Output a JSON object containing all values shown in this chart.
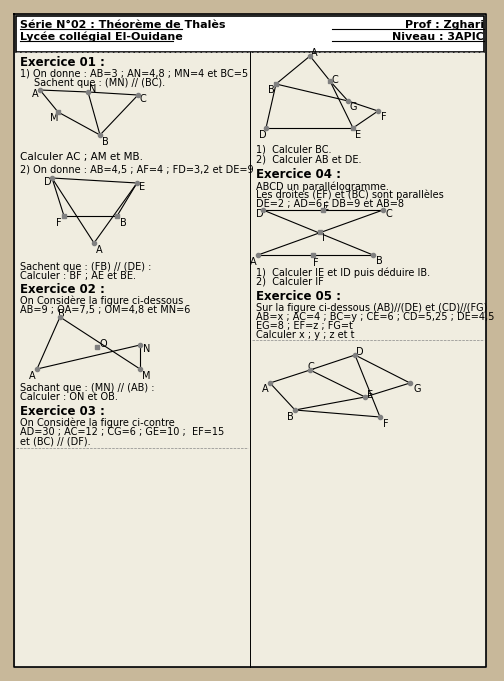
{
  "bg_color": "#c8b89a",
  "paper_color": "#f0ede0",
  "title_left1": "Série N°02 : Théorème de Thalès",
  "title_left2": "Lycée collégial El-Ouidane",
  "title_right1": "Prof : Zghari",
  "title_right2": "Niveau : 3APIC",
  "ex01_title": "Exercice 01 :",
  "ex01_1": "1) On donne : AB=3 ; AN=4,8 ; MN=4 et BC=5",
  "ex01_2": "    Sachent que : (MN) // (BC).",
  "ex01_calc": "Calculer AC ; AM et MB.",
  "ex01_2b": "2) On donne : AB=4,5 ; AF=4 ; FD=3,2 et DE=9",
  "ex01_sachent": "Sachent que : (FB) // (DE) :",
  "ex01_calc2": "Calculer : BF ; AE et BE.",
  "ex02_title": "Exercice 02 :",
  "ex02_1": "On Considère la figure ci-dessous",
  "ex02_2": "AB=9 ; OA=7,5 ; OM=4,8 et MN=6",
  "ex02_sachant": "Sachant que : (MN) // (AB) :",
  "ex02_calc": "Calculer : ON et OB.",
  "ex03_title": "Exercice 03 :",
  "ex03_1": "On Considère la figure ci-contre",
  "ex03_2": "AD=30 ; AC=12 ; CG=6 ; GE=10 ;  EF=15",
  "ex03_3": "et (BC) // (DF).",
  "ex03_right1": "1)  Calculer BC.",
  "ex03_right2": "2)  Calculer AB et DE.",
  "ex04_title": "Exercice 04 :",
  "ex04_1": "ABCD un parallélogramme.",
  "ex04_2": "Les droites (EF) et (BC) sont parallèles",
  "ex04_3": "DE=2 ; AD=6 ; DB=9 et AB=8",
  "ex04_calc1": "1)  Calculer IE et ID puis déduire IB.",
  "ex04_calc2": "2)  Calculer IF",
  "ex05_title": "Exercice 05 :",
  "ex05_1": "Sur la figure ci-dessous (AB)//(DE) et (CD)//(FG)",
  "ex05_2": "AB=x ; AC=4 ; BC=y ; CE=6 ; CD=5,25 ; DE=4,5",
  "ex05_3": "EG=8 ; EF=z ; FG=t",
  "ex05_calc": "Calculer x ; y ; z et t"
}
